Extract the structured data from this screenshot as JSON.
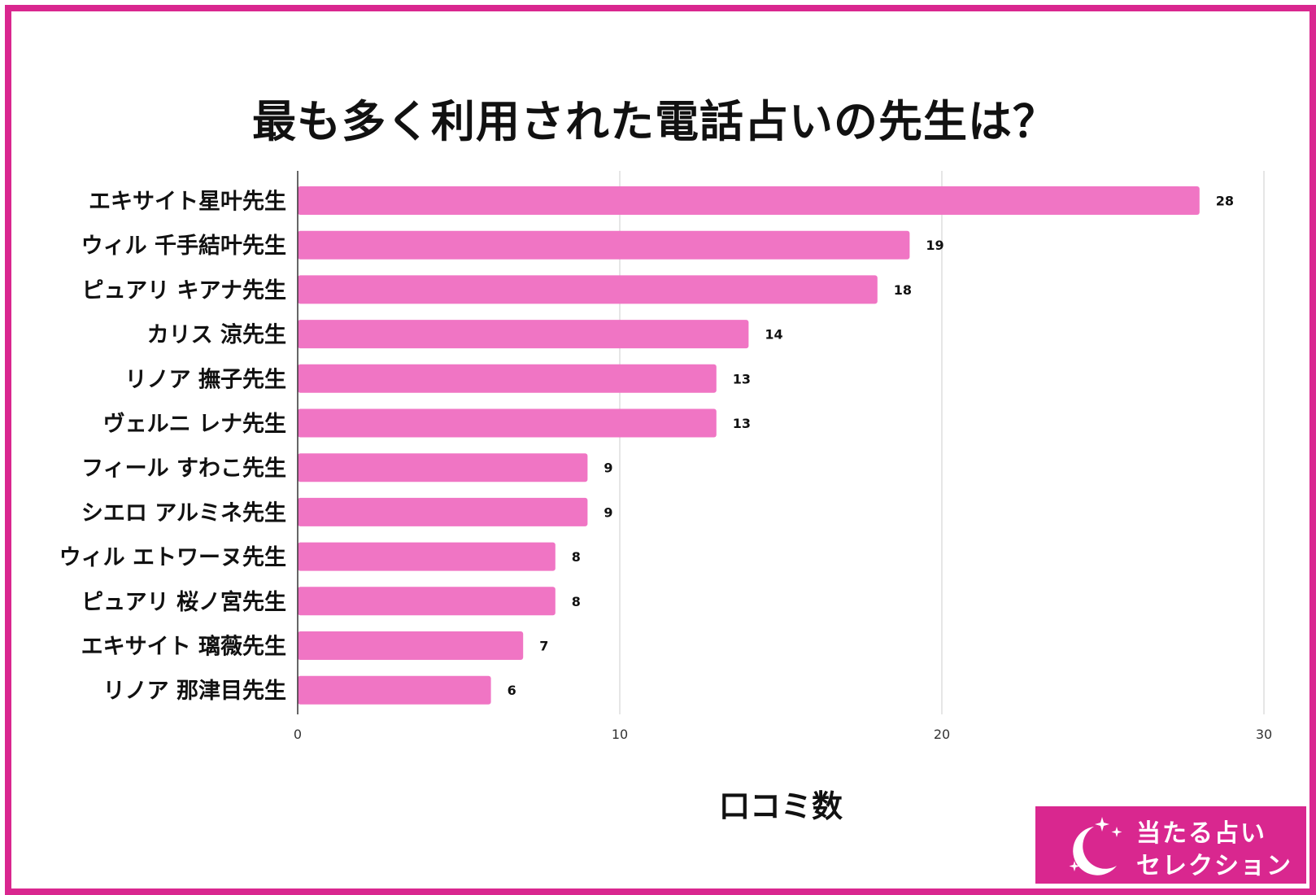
{
  "title": "最も多く利用された電話占いの先生は？",
  "chart_data": {
    "type": "bar",
    "orientation": "horizontal",
    "title": "最も多く利用された電話占いの先生は？",
    "xlabel": "口コミ数",
    "ylabel": "",
    "categories": [
      "エキサイト星叶先生",
      "ウィル 千手結叶先生",
      "ピュアリ キアナ先生",
      "カリス 涼先生",
      "リノア 撫子先生",
      "ヴェルニ レナ先生",
      "フィール すわこ先生",
      "シエロ アルミネ先生",
      "ウィル エトワーヌ先生",
      "ピュアリ 桜ノ宮先生",
      "エキサイト 璃薇先生",
      "リノア 那津目先生"
    ],
    "values": [
      28,
      19,
      18,
      14,
      13,
      13,
      9,
      9,
      8,
      8,
      7,
      6
    ],
    "xlim": [
      0,
      30
    ],
    "xticks": [
      0,
      10,
      20,
      30
    ],
    "grid": true,
    "data_labels": true,
    "bar_color": "#f075c4"
  },
  "colors": {
    "frame": "#d9278f",
    "bar": "#f075c4",
    "logo_bg": "#d9278f"
  },
  "logo": {
    "line1": "当たる占い",
    "line2": "セレクション",
    "icon": "crescent-moon-stars-icon"
  }
}
